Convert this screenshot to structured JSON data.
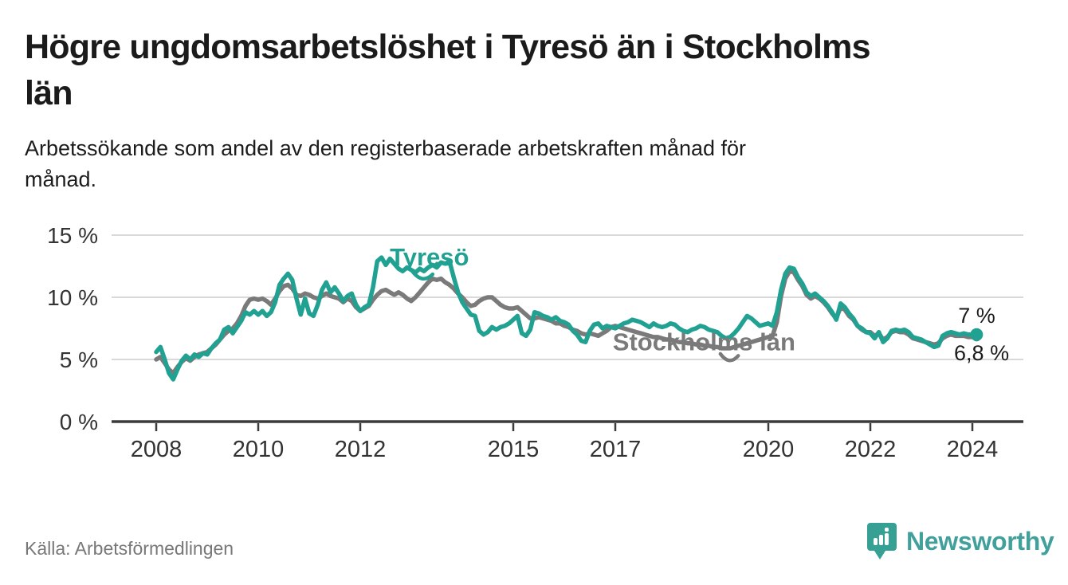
{
  "header": {
    "title_lines": [
      "Högre ungdomsarbetslöshet i Tyresö än i Stockholms",
      "län"
    ],
    "subtitle_lines": [
      "Arbetssökande som andel av den registerbaserade arbetskraften månad för",
      "månad."
    ]
  },
  "footer": {
    "source": "Källa: Arbetsförmedlingen",
    "brand": "Newsworthy"
  },
  "colors": {
    "tyreso": "#21a191",
    "stockholm": "#7a7a7a",
    "grid": "#d9d9d9",
    "axis": "#3b3b3b",
    "tick_text": "#333333",
    "annotation_text": "#1b1b1b",
    "brand_teal": "#41a09b"
  },
  "chart_data": {
    "type": "line",
    "unit": "%",
    "grid": "horizontal",
    "x": {
      "frequency": "monthly",
      "start_year": 2008,
      "start_month": 1,
      "end_year": 2024,
      "end_month": 2,
      "ticks": [
        2008,
        2010,
        2012,
        2015,
        2017,
        2020,
        2022,
        2024
      ]
    },
    "y": {
      "lim": [
        0,
        15.8
      ],
      "ticks": [
        0,
        5,
        10,
        15
      ],
      "tick_labels": [
        "0 %",
        "5 %",
        "10 %",
        "15 %"
      ]
    },
    "series": [
      {
        "name": "Stockholms län",
        "color": "#7a7a7a",
        "label": {
          "year": 2016.95,
          "value": 5.75
        },
        "pointer": {
          "x1": 2019.06,
          "v1": 5.45,
          "x2": 2019.41,
          "v2": 5.3
        },
        "end_label": {
          "text": "6,8 %",
          "year": 2024.72,
          "value": 4.95
        },
        "end_dot_radius": 5.5,
        "values": [
          5.0,
          5.2,
          4.7,
          4.2,
          3.9,
          4.4,
          4.8,
          5.1,
          4.9,
          5.2,
          5.4,
          5.5,
          5.6,
          5.9,
          6.2,
          6.6,
          7.0,
          7.3,
          7.5,
          7.9,
          8.5,
          9.3,
          9.8,
          9.9,
          9.8,
          9.9,
          9.7,
          9.4,
          9.9,
          10.5,
          10.9,
          11.0,
          10.7,
          10.2,
          10.1,
          10.3,
          10.2,
          10.0,
          9.9,
          10.1,
          10.3,
          10.1,
          10.0,
          9.9,
          9.6,
          9.9,
          9.7,
          9.2,
          8.9,
          9.1,
          9.3,
          9.8,
          10.2,
          10.5,
          10.6,
          10.4,
          10.2,
          10.4,
          10.2,
          9.9,
          9.7,
          10.0,
          10.4,
          10.8,
          11.2,
          11.5,
          11.4,
          11.5,
          11.2,
          11.0,
          10.7,
          10.3,
          10.0,
          9.6,
          9.3,
          9.4,
          9.7,
          9.9,
          10.0,
          10.0,
          9.7,
          9.4,
          9.2,
          9.1,
          9.1,
          9.2,
          8.9,
          8.6,
          8.3,
          8.3,
          8.4,
          8.3,
          8.2,
          8.1,
          7.9,
          7.9,
          7.7,
          7.6,
          7.4,
          7.3,
          7.1,
          7.0,
          7.1,
          7.0,
          6.9,
          7.1,
          7.3,
          7.6,
          7.7,
          7.6,
          7.5,
          7.4,
          7.3,
          7.2,
          7.1,
          7.0,
          6.9,
          6.8,
          6.8,
          6.7,
          6.6,
          6.6,
          6.5,
          6.4,
          6.4,
          6.3,
          6.3,
          6.2,
          6.2,
          6.1,
          6.1,
          6.0,
          6.0,
          5.9,
          5.9,
          5.9,
          6.0,
          6.1,
          6.2,
          6.3,
          6.4,
          6.5,
          6.6,
          6.7,
          6.8,
          6.9,
          8.0,
          10.1,
          11.5,
          12.1,
          12.0,
          11.4,
          10.9,
          10.2,
          9.9,
          10.1,
          9.9,
          9.6,
          9.2,
          8.7,
          8.3,
          9.2,
          9.0,
          8.5,
          8.2,
          7.7,
          7.4,
          7.2,
          7.2,
          6.9,
          7.1,
          6.6,
          6.8,
          7.2,
          7.3,
          7.2,
          7.2,
          7.0,
          6.7,
          6.6,
          6.5,
          6.4,
          6.3,
          6.2,
          6.3,
          6.7,
          6.9,
          7.0,
          6.9,
          6.9,
          6.9,
          6.8,
          6.8,
          6.8
        ]
      },
      {
        "name": "Tyresö",
        "color": "#21a191",
        "label": {
          "year": 2012.58,
          "value": 12.55
        },
        "pointer": {
          "x1": 2013.02,
          "v1": 12.1,
          "x2": 2013.42,
          "v2": 11.85
        },
        "end_label": {
          "text": "7 %",
          "year": 2024.45,
          "value": 7.95
        },
        "end_dot_radius": 8,
        "values": [
          5.6,
          6.0,
          5.0,
          3.9,
          3.4,
          4.2,
          4.9,
          5.3,
          5.0,
          5.4,
          5.2,
          5.5,
          5.4,
          5.9,
          6.3,
          6.6,
          7.4,
          7.6,
          7.1,
          7.6,
          8.1,
          8.8,
          8.6,
          8.9,
          8.6,
          8.9,
          8.5,
          8.8,
          9.6,
          11.0,
          11.5,
          11.9,
          11.4,
          9.9,
          8.6,
          9.9,
          8.7,
          8.5,
          9.4,
          10.6,
          11.2,
          10.4,
          10.8,
          10.3,
          9.7,
          10.1,
          10.3,
          9.4,
          8.9,
          9.2,
          9.4,
          10.8,
          12.9,
          13.2,
          12.6,
          13.1,
          12.7,
          12.3,
          12.1,
          12.4,
          12.2,
          12.0,
          12.3,
          12.1,
          12.4,
          12.6,
          12.4,
          12.8,
          12.7,
          12.9,
          11.6,
          10.4,
          9.6,
          9.1,
          8.6,
          8.5,
          7.3,
          7.0,
          7.2,
          7.6,
          7.4,
          7.6,
          7.7,
          7.9,
          8.2,
          8.5,
          7.1,
          6.9,
          7.4,
          8.8,
          8.7,
          8.5,
          8.4,
          8.2,
          8.4,
          8.1,
          8.0,
          7.8,
          7.3,
          7.0,
          6.5,
          6.4,
          7.3,
          7.8,
          7.9,
          7.5,
          7.7,
          7.6,
          7.5,
          7.7,
          7.9,
          8.0,
          8.2,
          8.1,
          8.0,
          7.8,
          7.6,
          7.9,
          7.7,
          7.6,
          7.7,
          7.9,
          7.8,
          7.5,
          7.3,
          7.2,
          7.4,
          7.5,
          7.7,
          7.6,
          7.4,
          7.3,
          7.2,
          6.9,
          6.7,
          6.8,
          7.1,
          7.5,
          8.0,
          8.5,
          8.3,
          8.0,
          7.7,
          7.8,
          7.9,
          7.7,
          8.8,
          10.6,
          11.9,
          12.4,
          12.3,
          11.6,
          11.1,
          10.4,
          10.1,
          10.3,
          10.0,
          9.7,
          9.3,
          8.8,
          8.2,
          9.5,
          9.2,
          8.7,
          8.3,
          7.7,
          7.5,
          7.2,
          7.1,
          6.7,
          7.2,
          6.4,
          6.7,
          7.3,
          7.4,
          7.3,
          7.4,
          7.2,
          6.8,
          6.7,
          6.6,
          6.4,
          6.2,
          6.0,
          6.1,
          6.9,
          7.1,
          7.2,
          7.1,
          7.0,
          7.1,
          7.0,
          7.0,
          7.0
        ]
      }
    ]
  }
}
